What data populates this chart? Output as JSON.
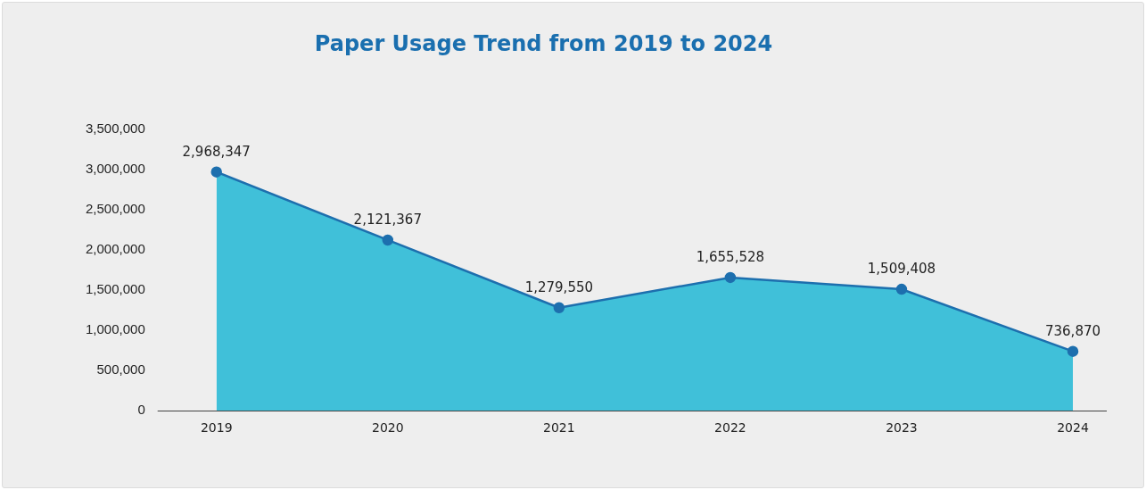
{
  "chart_data": {
    "type": "area",
    "title": "Paper Usage Trend from 2019 to 2024",
    "categories": [
      "2019",
      "2020",
      "2021",
      "2022",
      "2023",
      "2024"
    ],
    "series": [
      {
        "color": "#40c0d9",
        "values": [
          2968347,
          2121367,
          1279550,
          1655528,
          1509408,
          736870
        ],
        "value_labels": [
          "2,968,347",
          "2,121,367",
          "1,279,550",
          "1,655,528",
          "1,509,408",
          "736,870"
        ]
      }
    ],
    "ylim": [
      0,
      3500000
    ],
    "yticks": [
      {
        "value": 0,
        "label": "0"
      },
      {
        "value": 500000,
        "label": "500,000"
      },
      {
        "value": 1000000,
        "label": "1,000,000"
      },
      {
        "value": 1500000,
        "label": "1,500,000"
      },
      {
        "value": 2000000,
        "label": "2,000,000"
      },
      {
        "value": 2500000,
        "label": "2,500,000"
      },
      {
        "value": 3000000,
        "label": "3,000,000"
      },
      {
        "value": 3500000,
        "label": "3,500,000"
      }
    ],
    "grid": false,
    "legend": false,
    "marker": "circle",
    "line_style": "solid"
  }
}
